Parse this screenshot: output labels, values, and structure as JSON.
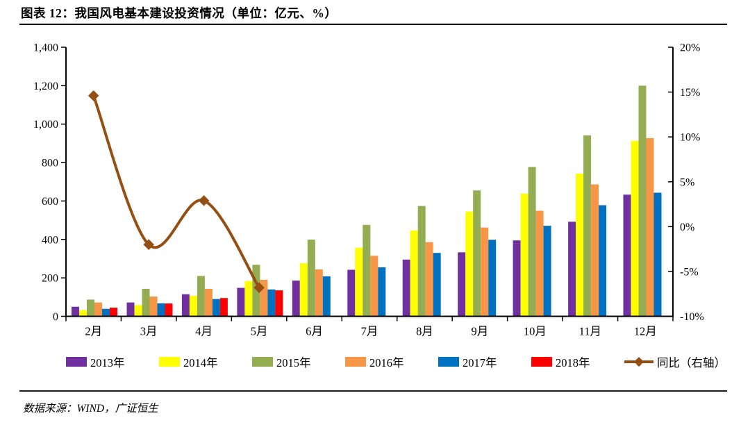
{
  "header": {
    "title": "图表 12：我国风电基本建设投资情况（单位：亿元、%）"
  },
  "chart_data": {
    "type": "bar",
    "title": "我国风电基本建设投资情况",
    "unit_note": "亿元、%",
    "categories": [
      "2月",
      "3月",
      "4月",
      "5月",
      "6月",
      "7月",
      "8月",
      "9月",
      "10月",
      "11月",
      "12月"
    ],
    "series": [
      {
        "name": "2013年",
        "color": "#7030A0",
        "values": [
          50,
          72,
          115,
          148,
          186,
          242,
          295,
          333,
          395,
          492,
          633
        ]
      },
      {
        "name": "2014年",
        "color": "#FFFF00",
        "values": [
          32,
          58,
          107,
          183,
          276,
          357,
          447,
          545,
          638,
          742,
          913
        ]
      },
      {
        "name": "2015年",
        "color": "#94AD53",
        "values": [
          87,
          143,
          210,
          268,
          399,
          476,
          574,
          655,
          777,
          941,
          1200
        ]
      },
      {
        "name": "2016年",
        "color": "#F79646",
        "values": [
          72,
          103,
          143,
          190,
          244,
          315,
          386,
          462,
          549,
          686,
          927
        ]
      },
      {
        "name": "2017年",
        "color": "#0070C0",
        "values": [
          39,
          68,
          90,
          140,
          208,
          255,
          330,
          398,
          471,
          578,
          643
        ]
      },
      {
        "name": "2018年",
        "color": "#FF0000",
        "values": [
          45,
          67,
          95,
          135,
          null,
          null,
          null,
          null,
          null,
          null,
          null
        ]
      }
    ],
    "line_series": {
      "name": "同比（右轴）",
      "color": "#964F12",
      "axis": "right",
      "values": [
        14.6,
        -2.0,
        2.9,
        -6.8,
        null,
        null,
        null,
        null,
        null,
        null,
        null
      ]
    },
    "left_axis": {
      "min": 0,
      "max": 1400,
      "step": 200,
      "tick_labels": [
        "0",
        "200",
        "400",
        "600",
        "800",
        "1,000",
        "1,200",
        "1,400"
      ]
    },
    "right_axis": {
      "min": -10,
      "max": 20,
      "step": 5,
      "tick_labels": [
        "-10%",
        "-5%",
        "0%",
        "5%",
        "10%",
        "15%",
        "20%"
      ]
    },
    "grid": false,
    "legend_position": "bottom"
  },
  "footer": {
    "source": "数据来源：WIND，广证恒生"
  }
}
